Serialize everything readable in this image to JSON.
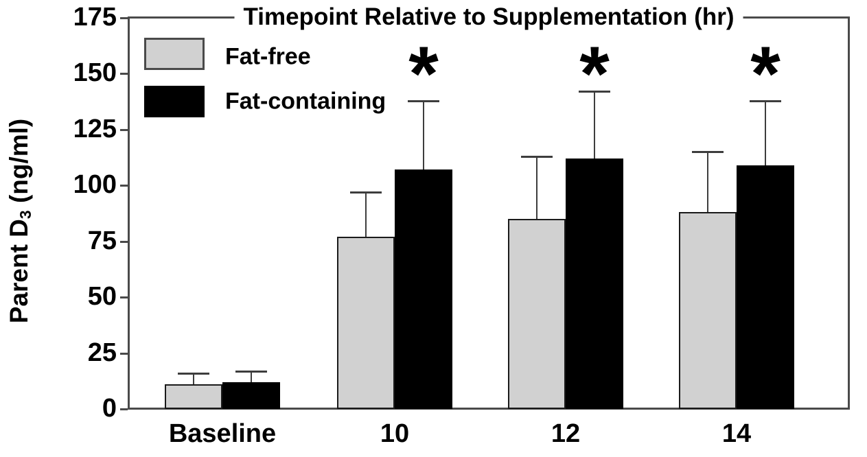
{
  "chart_data": {
    "type": "bar",
    "title": "Timepoint Relative to Supplementation (hr)",
    "ylabel": "Parent D3 (ng/ml)",
    "ylabel_parts": {
      "pre": "Parent D",
      "sub": "3",
      "post": " (ng/ml)"
    },
    "xlabel": "",
    "categories": [
      "Baseline",
      "10",
      "12",
      "14"
    ],
    "series": [
      {
        "name": "Fat-free",
        "color": "#d1d1d1",
        "border_color": "#1a1a1a",
        "values": [
          11,
          77,
          85,
          88
        ],
        "error_plus": [
          5,
          20,
          28,
          27
        ]
      },
      {
        "name": "Fat-containing",
        "color": "#000000",
        "border_color": "#000000",
        "values": [
          12,
          107,
          112,
          109
        ],
        "error_plus": [
          5,
          31,
          30,
          29
        ]
      }
    ],
    "significance": {
      "marker": "*",
      "categories": [
        "10",
        "12",
        "14"
      ],
      "applies_to_series": "Fat-containing"
    },
    "ylim": [
      0,
      175
    ],
    "yticks": [
      0,
      25,
      50,
      75,
      100,
      125,
      150,
      175
    ],
    "legend_position": "upper-left",
    "grid": false,
    "error_bars": "plus-only",
    "colors": {
      "axis": "#4a4a4a",
      "error_bar": "#3d3d3d",
      "text": "#000000",
      "background": "#ffffff"
    }
  }
}
